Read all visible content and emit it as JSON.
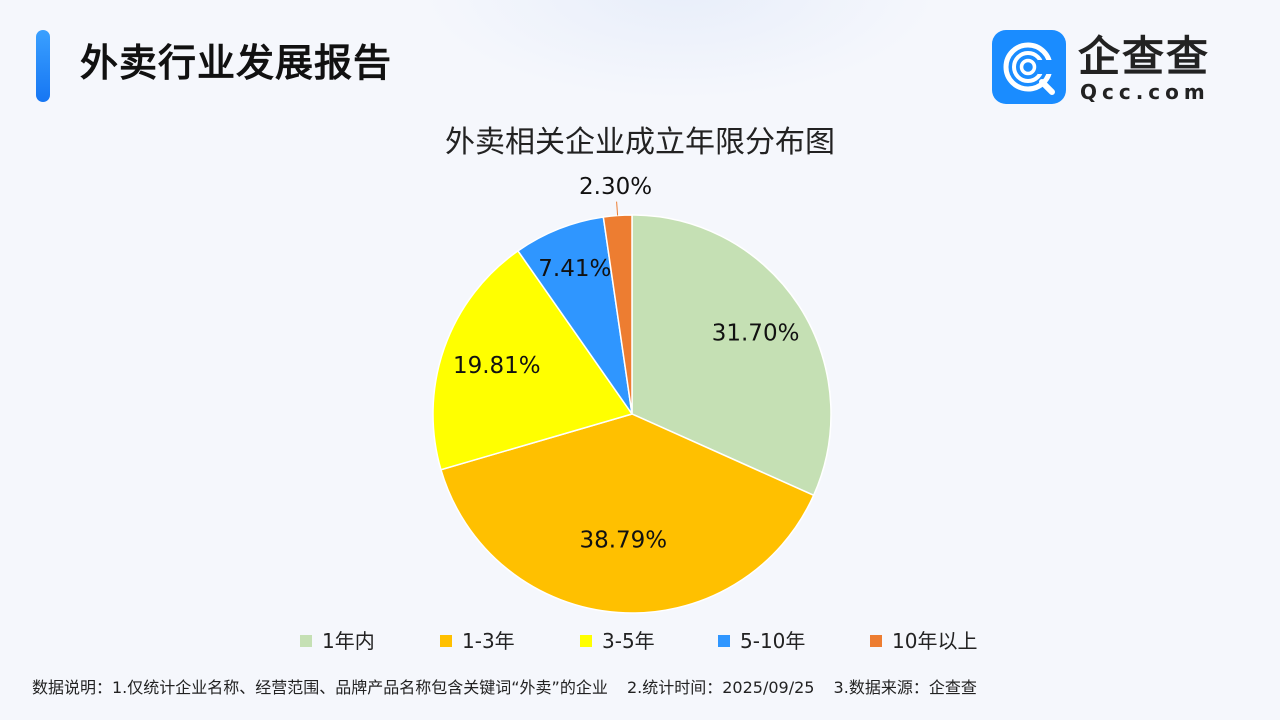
{
  "header": {
    "title": "外卖行业发展报告"
  },
  "logo": {
    "name": "企查查",
    "domain": "Qcc.com",
    "icon": "qcc-magnifier-logo",
    "color": "#1a8cff"
  },
  "chart_data": {
    "type": "pie",
    "title": "外卖相关企业成立年限分布图",
    "categories": [
      "1年内",
      "1-3年",
      "3-5年",
      "5-10年",
      "10年以上"
    ],
    "values": [
      31.7,
      38.79,
      19.81,
      7.41,
      2.3
    ],
    "labels": [
      "31.70%",
      "38.79%",
      "19.81%",
      "7.41%",
      "2.30%"
    ],
    "colors": [
      "#c5e0b4",
      "#ffc000",
      "#ffff00",
      "#2f96ff",
      "#ed7d31"
    ],
    "start_angle": "12 o'clock",
    "direction": "clockwise",
    "legend_position": "bottom"
  },
  "footnote": {
    "items": [
      "数据说明：1.仅统计企业名称、经营范围、品牌产品名称包含关键词“外卖”的企业",
      "2.统计时间：2025/09/25",
      "3.数据来源：企查查"
    ]
  }
}
